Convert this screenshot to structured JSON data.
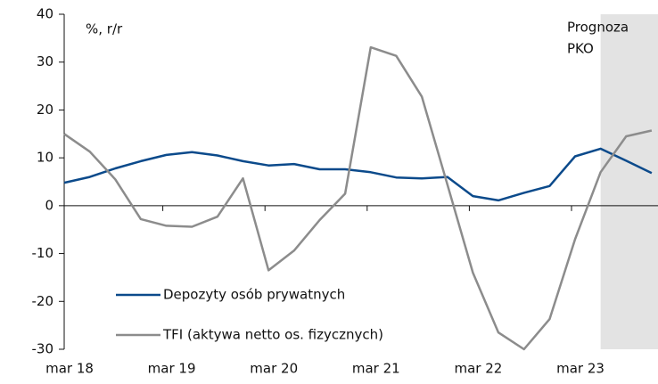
{
  "chart_data": {
    "type": "line",
    "unit_label": "%, r/r",
    "annotation": {
      "lines": [
        "Prognoza",
        "PKO"
      ],
      "from_index": 21
    },
    "categories": [
      "mar 18",
      null,
      null,
      null,
      "mar 19",
      null,
      null,
      null,
      "mar 20",
      null,
      null,
      null,
      "mar 21",
      null,
      null,
      null,
      "mar 22",
      null,
      null,
      null,
      "mar 23",
      null,
      null,
      null
    ],
    "series": [
      {
        "name": "Depozyty osób prywatnych",
        "color": "#0b4a8b",
        "values": [
          4.8,
          6,
          7.8,
          9.3,
          10.6,
          11.2,
          10.5,
          9.3,
          8.4,
          8.7,
          7.6,
          7.6,
          7,
          5.9,
          5.7,
          6,
          2,
          1.1,
          2.7,
          4.1,
          10.3,
          11.9,
          9.4,
          6.8
        ]
      },
      {
        "name": "TFI (aktywa netto os. fizycznych)",
        "color": "#8c8c8c",
        "values": [
          15,
          11.3,
          5.5,
          -2.8,
          -4.2,
          -4.4,
          -2.3,
          5.7,
          -13.5,
          -9.4,
          -3,
          2.5,
          33.1,
          31.3,
          22.8,
          4.4,
          -14,
          -26.5,
          -30,
          -23.7,
          -7,
          7,
          14.5,
          15.7
        ]
      }
    ],
    "ylim": [
      -30,
      40
    ],
    "yticks": [
      -30,
      -20,
      -10,
      0,
      10,
      20,
      30,
      40
    ],
    "shade_color": "#e3e3e3"
  }
}
